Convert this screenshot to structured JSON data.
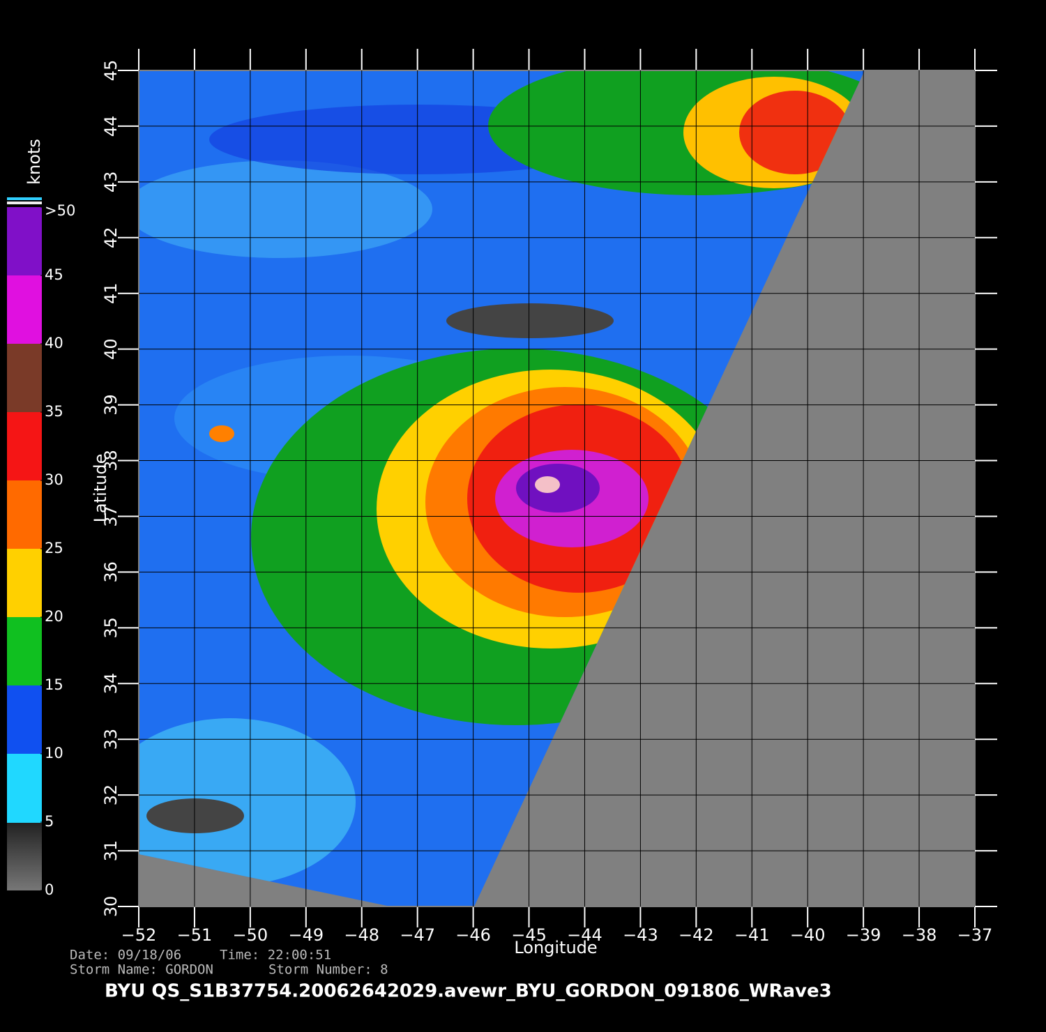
{
  "chart_data": {
    "type": "map",
    "xlabel": "Longitude",
    "ylabel": "Latitude",
    "xlim": [
      -52,
      -37
    ],
    "ylim": [
      30,
      45
    ],
    "xticks": [
      -52,
      -51,
      -50,
      -49,
      -48,
      -47,
      -46,
      -45,
      -44,
      -43,
      -42,
      -41,
      -40,
      -39,
      -38,
      -37
    ],
    "yticks": [
      30,
      31,
      32,
      33,
      34,
      35,
      36,
      37,
      38,
      39,
      40,
      41,
      42,
      43,
      44,
      45
    ],
    "grid": true,
    "colorbar": {
      "label": "knots",
      "lim": [
        0,
        50
      ],
      "ticks": [
        0,
        5,
        10,
        15,
        20,
        25,
        30,
        35,
        40,
        45,
        {
          "value": 50,
          "label": ">50"
        }
      ]
    },
    "info": {
      "date": "Date: 09/18/06",
      "time": "Time: 22:00:51",
      "storm_name": "Storm Name: GORDON",
      "storm_number": "Storm Number: 8",
      "file": "BYU QS_S1B37754.20062642029.avewr_BYU_GORDON_091806_WRave3"
    }
  }
}
